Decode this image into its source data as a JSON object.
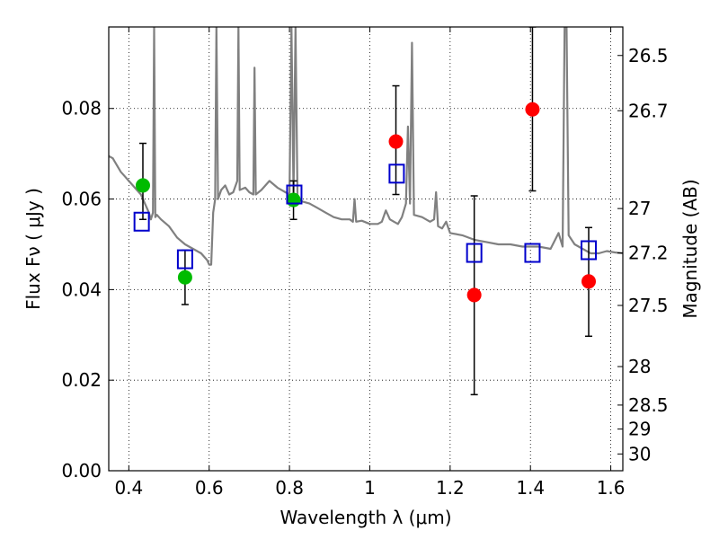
{
  "chart_data": {
    "type": "scatter",
    "title": "",
    "xlabel": "Wavelength  λ (μm)",
    "ylabel": "Flux  Fν  ( μJy )",
    "y2label": "Magnitude (AB)",
    "xlim": [
      0.35,
      1.63
    ],
    "ylim": [
      0.0,
      0.098
    ],
    "grid": true,
    "x_ticks": [
      0.4,
      0.6,
      0.8,
      1.0,
      1.2,
      1.4,
      1.6
    ],
    "x_tick_labels": [
      "0.4",
      "0.6",
      "0.8",
      "1",
      "1.2",
      "1.4",
      "1.6"
    ],
    "y_ticks": [
      0.0,
      0.02,
      0.04,
      0.06,
      0.08
    ],
    "y_tick_labels": [
      "0.00",
      "0.02",
      "0.04",
      "0.06",
      "0.08"
    ],
    "y2_ticks": [
      {
        "flux": 0.0917,
        "label": "26.5"
      },
      {
        "flux": 0.0795,
        "label": "26.7"
      },
      {
        "flux": 0.0579,
        "label": "27"
      },
      {
        "flux": 0.0481,
        "label": "27.2"
      },
      {
        "flux": 0.0365,
        "label": "27.5"
      },
      {
        "flux": 0.023,
        "label": "28"
      },
      {
        "flux": 0.0145,
        "label": "28.5"
      },
      {
        "flux": 0.0092,
        "label": "29"
      },
      {
        "flux": 0.0037,
        "label": "30"
      }
    ],
    "series": [
      {
        "marker": "circle",
        "color": "#00bb00",
        "points": [
          {
            "x": 0.435,
            "y": 0.063
          },
          {
            "x": 0.54,
            "y": 0.0427
          },
          {
            "x": 0.81,
            "y": 0.0598
          }
        ]
      },
      {
        "marker": "circle",
        "color": "#ff0000",
        "points": [
          {
            "x": 1.065,
            "y": 0.0727
          },
          {
            "x": 1.26,
            "y": 0.0388
          },
          {
            "x": 1.405,
            "y": 0.0798
          },
          {
            "x": 1.545,
            "y": 0.0418
          }
        ]
      },
      {
        "marker": "square",
        "color": "#0000cc",
        "points": [
          {
            "x": 0.432,
            "y": 0.055
          },
          {
            "x": 0.54,
            "y": 0.0467
          },
          {
            "x": 0.812,
            "y": 0.061
          },
          {
            "x": 1.067,
            "y": 0.0656
          },
          {
            "x": 1.26,
            "y": 0.0481
          },
          {
            "x": 1.405,
            "y": 0.0481
          },
          {
            "x": 1.545,
            "y": 0.0487
          }
        ]
      }
    ],
    "errorbars": [
      {
        "x": 0.435,
        "low": 0.0555,
        "high": 0.0723
      },
      {
        "x": 0.54,
        "low": 0.0367,
        "high": 0.0487
      },
      {
        "x": 0.81,
        "low": 0.0555,
        "high": 0.064
      },
      {
        "x": 1.065,
        "low": 0.061,
        "high": 0.085
      },
      {
        "x": 1.26,
        "low": 0.0168,
        "high": 0.0607
      },
      {
        "x": 1.405,
        "low": 0.0618,
        "high": 0.098
      },
      {
        "x": 1.545,
        "low": 0.0297,
        "high": 0.0537
      }
    ],
    "spectrum": {
      "color": "#808080",
      "points": [
        [
          0.35,
          0.0695
        ],
        [
          0.36,
          0.069
        ],
        [
          0.37,
          0.0675
        ],
        [
          0.38,
          0.066
        ],
        [
          0.39,
          0.065
        ],
        [
          0.4,
          0.064
        ],
        [
          0.41,
          0.063
        ],
        [
          0.42,
          0.062
        ],
        [
          0.43,
          0.061
        ],
        [
          0.44,
          0.059
        ],
        [
          0.45,
          0.057
        ],
        [
          0.455,
          0.0555
        ],
        [
          0.46,
          0.057
        ],
        [
          0.463,
          0.098
        ],
        [
          0.466,
          0.056
        ],
        [
          0.47,
          0.0565
        ],
        [
          0.48,
          0.0555
        ],
        [
          0.5,
          0.054
        ],
        [
          0.52,
          0.0515
        ],
        [
          0.54,
          0.05
        ],
        [
          0.56,
          0.049
        ],
        [
          0.58,
          0.048
        ],
        [
          0.595,
          0.0465
        ],
        [
          0.6,
          0.0455
        ],
        [
          0.605,
          0.0455
        ],
        [
          0.61,
          0.057
        ],
        [
          0.615,
          0.06
        ],
        [
          0.618,
          0.098
        ],
        [
          0.622,
          0.06
        ],
        [
          0.63,
          0.062
        ],
        [
          0.64,
          0.063
        ],
        [
          0.65,
          0.061
        ],
        [
          0.66,
          0.0615
        ],
        [
          0.67,
          0.064
        ],
        [
          0.673,
          0.098
        ],
        [
          0.676,
          0.062
        ],
        [
          0.69,
          0.0625
        ],
        [
          0.7,
          0.0615
        ],
        [
          0.71,
          0.061
        ],
        [
          0.713,
          0.089
        ],
        [
          0.716,
          0.061
        ],
        [
          0.73,
          0.062
        ],
        [
          0.75,
          0.064
        ],
        [
          0.77,
          0.0625
        ],
        [
          0.79,
          0.0615
        ],
        [
          0.8,
          0.061
        ],
        [
          0.805,
          0.098
        ],
        [
          0.81,
          0.061
        ],
        [
          0.815,
          0.098
        ],
        [
          0.82,
          0.0605
        ],
        [
          0.83,
          0.0595
        ],
        [
          0.85,
          0.059
        ],
        [
          0.87,
          0.058
        ],
        [
          0.89,
          0.057
        ],
        [
          0.91,
          0.056
        ],
        [
          0.93,
          0.0555
        ],
        [
          0.95,
          0.0555
        ],
        [
          0.958,
          0.055
        ],
        [
          0.962,
          0.06
        ],
        [
          0.966,
          0.055
        ],
        [
          0.98,
          0.0552
        ],
        [
          1.0,
          0.0545
        ],
        [
          1.02,
          0.0545
        ],
        [
          1.03,
          0.055
        ],
        [
          1.04,
          0.0575
        ],
        [
          1.05,
          0.0555
        ],
        [
          1.06,
          0.055
        ],
        [
          1.07,
          0.0545
        ],
        [
          1.08,
          0.056
        ],
        [
          1.09,
          0.059
        ],
        [
          1.095,
          0.076
        ],
        [
          1.1,
          0.059
        ],
        [
          1.105,
          0.0945
        ],
        [
          1.11,
          0.0565
        ],
        [
          1.13,
          0.056
        ],
        [
          1.15,
          0.055
        ],
        [
          1.16,
          0.0555
        ],
        [
          1.165,
          0.0615
        ],
        [
          1.17,
          0.054
        ],
        [
          1.18,
          0.0535
        ],
        [
          1.19,
          0.055
        ],
        [
          1.2,
          0.0525
        ],
        [
          1.23,
          0.052
        ],
        [
          1.26,
          0.051
        ],
        [
          1.29,
          0.0505
        ],
        [
          1.32,
          0.05
        ],
        [
          1.35,
          0.05
        ],
        [
          1.38,
          0.0495
        ],
        [
          1.42,
          0.0495
        ],
        [
          1.45,
          0.049
        ],
        [
          1.47,
          0.0525
        ],
        [
          1.48,
          0.0495
        ],
        [
          1.485,
          0.098
        ],
        [
          1.49,
          0.098
        ],
        [
          1.495,
          0.052
        ],
        [
          1.51,
          0.05
        ],
        [
          1.53,
          0.049
        ],
        [
          1.55,
          0.048
        ],
        [
          1.57,
          0.048
        ],
        [
          1.59,
          0.0485
        ],
        [
          1.61,
          0.0482
        ],
        [
          1.63,
          0.048
        ]
      ]
    }
  }
}
